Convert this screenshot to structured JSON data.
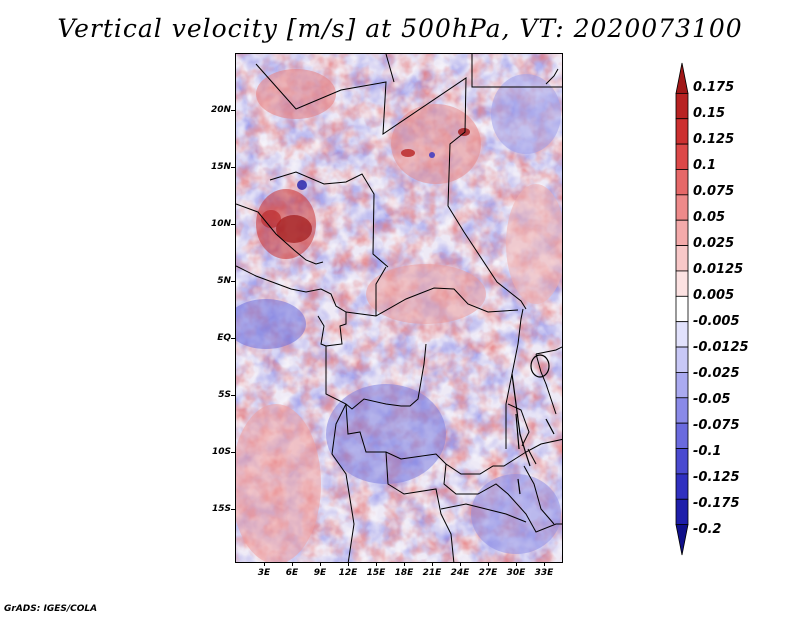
{
  "title": "Vertical velocity [m/s] at 500hPa, VT: 2020073100",
  "footer": "GrADS: IGES/COLA",
  "map": {
    "lat_labels": [
      "20N",
      "15N",
      "10N",
      "5N",
      "EQ",
      "5S",
      "10S",
      "15S"
    ],
    "lon_labels": [
      "3E",
      "6E",
      "9E",
      "12E",
      "15E",
      "18E",
      "21E",
      "24E",
      "27E",
      "30E",
      "33E"
    ],
    "field": "vertical velocity at 500hPa",
    "colors": {
      "positive": "#d83a3a",
      "negative": "#4a4ad0",
      "border": "#000000"
    }
  },
  "colorbar": {
    "levels": [
      "0.175",
      "0.15",
      "0.125",
      "0.1",
      "0.075",
      "0.05",
      "0.025",
      "0.0125",
      "0.005",
      "-0.005",
      "-0.0125",
      "-0.025",
      "-0.05",
      "-0.075",
      "-0.1",
      "-0.125",
      "-0.175",
      "-0.2"
    ],
    "colors": [
      "#a01818",
      "#b82222",
      "#cc3030",
      "#dc4848",
      "#e66868",
      "#ee8a8a",
      "#f4aaaa",
      "#f8c8c8",
      "#fce2e2",
      "#ffffff",
      "#e2e2fc",
      "#c8c8f6",
      "#aaaaf0",
      "#8a8ae8",
      "#6a6ade",
      "#4a4ad0",
      "#3030c0",
      "#1e1eaa",
      "#10108a"
    ]
  }
}
